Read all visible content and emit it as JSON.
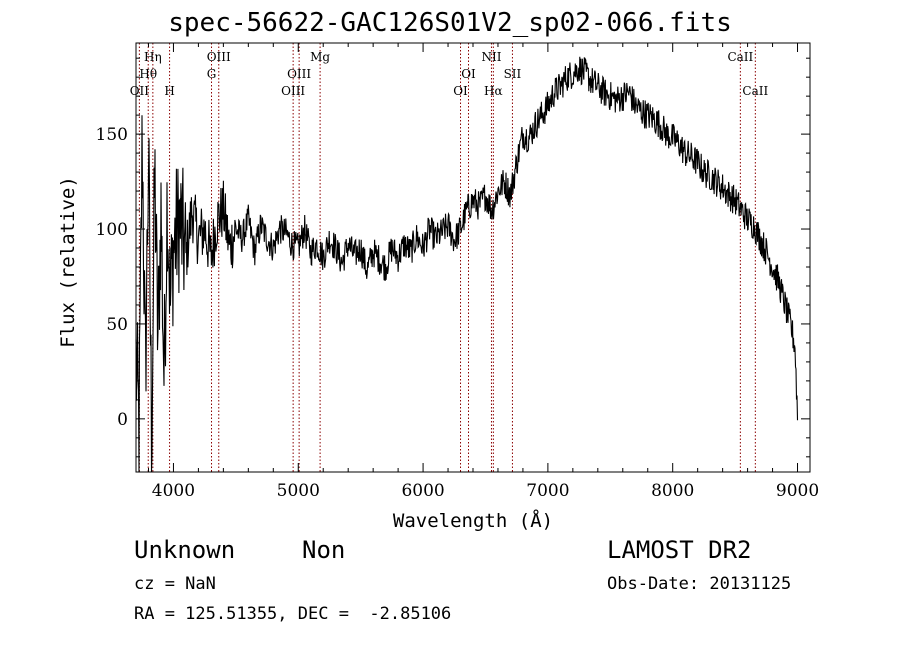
{
  "chart_data": {
    "type": "line",
    "title": "spec-56622-GAC126S01V2_sp02-066.fits",
    "xlabel": "Wavelength (Å)",
    "ylabel": "Flux (relative)",
    "xlim": [
      3700,
      9100
    ],
    "ylim": [
      -28,
      198
    ],
    "xticks": [
      4000,
      5000,
      6000,
      7000,
      8000,
      9000
    ],
    "yticks": [
      0,
      50,
      100,
      150
    ],
    "grid": false,
    "series": [
      {
        "x": [
          3700,
          3725,
          3750,
          3775,
          3800,
          3825,
          3850,
          3875,
          3900,
          3925,
          3950,
          3975,
          4000,
          4050,
          4100,
          4150,
          4200,
          4250,
          4300,
          4350,
          4400,
          4450,
          4500,
          4550,
          4600,
          4650,
          4700,
          4750,
          4800,
          4850,
          4900,
          4950,
          5000,
          5050,
          5100,
          5150,
          5200,
          5250,
          5300,
          5350,
          5400,
          5450,
          5500,
          5550,
          5600,
          5650,
          5700,
          5750,
          5800,
          5850,
          5900,
          5950,
          6000,
          6050,
          6100,
          6150,
          6200,
          6250,
          6300,
          6350,
          6400,
          6450,
          6500,
          6550,
          6600,
          6650,
          6700,
          6750,
          6800,
          6850,
          6900,
          6950,
          7000,
          7050,
          7100,
          7150,
          7200,
          7250,
          7300,
          7350,
          7400,
          7450,
          7500,
          7550,
          7600,
          7650,
          7700,
          7750,
          7800,
          7850,
          7900,
          7950,
          8000,
          8050,
          8100,
          8150,
          8200,
          8250,
          8300,
          8350,
          8400,
          8450,
          8500,
          8550,
          8600,
          8650,
          8700,
          8750,
          8800,
          8850,
          8900,
          8950,
          8980,
          9000
        ],
        "y": [
          30,
          -5,
          150,
          20,
          140,
          -10,
          130,
          40,
          110,
          20,
          120,
          60,
          90,
          105,
          85,
          110,
          95,
          100,
          85,
          105,
          110,
          90,
          100,
          95,
          105,
          88,
          102,
          95,
          90,
          100,
          98,
          92,
          90,
          100,
          88,
          92,
          85,
          95,
          90,
          82,
          92,
          86,
          90,
          78,
          88,
          84,
          80,
          90,
          85,
          92,
          88,
          96,
          90,
          100,
          95,
          98,
          102,
          94,
          100,
          110,
          115,
          112,
          118,
          110,
          120,
          125,
          118,
          135,
          150,
          148,
          155,
          160,
          165,
          172,
          175,
          180,
          182,
          185,
          182,
          178,
          175,
          172,
          170,
          168,
          170,
          172,
          165,
          162,
          160,
          158,
          155,
          150,
          148,
          145,
          140,
          138,
          135,
          130,
          128,
          125,
          122,
          118,
          115,
          110,
          105,
          102,
          95,
          88,
          80,
          72,
          60,
          48,
          38,
          2
        ]
      }
    ],
    "emission_lines": [
      {
        "label": "OII",
        "x": 3727,
        "row": 3
      },
      {
        "label": "Hθ",
        "x": 3798,
        "row": 2
      },
      {
        "label": "Hη",
        "x": 3835,
        "row": 1
      },
      {
        "label": "H",
        "x": 3969,
        "row": 3
      },
      {
        "label": "G",
        "x": 4305,
        "row": 2
      },
      {
        "label": "OIII",
        "x": 4363,
        "row": 1
      },
      {
        "label": "OIII",
        "x": 4959,
        "row": 3
      },
      {
        "label": "OIII",
        "x": 5007,
        "row": 2
      },
      {
        "label": "Mg",
        "x": 5175,
        "row": 1
      },
      {
        "label": "OI",
        "x": 6300,
        "row": 3
      },
      {
        "label": "OI",
        "x": 6364,
        "row": 2
      },
      {
        "label": "NII",
        "x": 6548,
        "row": 1
      },
      {
        "label": "Hα",
        "x": 6563,
        "row": 3
      },
      {
        "label": "SII",
        "x": 6716,
        "row": 2
      },
      {
        "label": "CaII",
        "x": 8542,
        "row": 1
      },
      {
        "label": "CaII",
        "x": 8662,
        "row": 3
      }
    ],
    "annotations": {
      "object_class": "Unknown",
      "object_subclass": "Non",
      "survey": "LAMOST DR2",
      "cz": "cz = NaN",
      "obs_date": "Obs-Date: 20131125",
      "coords": "RA = 125.51355, DEC =  -2.85106"
    }
  },
  "colors": {
    "spectrum": "#000000",
    "line_marker": "#8b0000",
    "axes": "#000000",
    "background": "#ffffff"
  }
}
